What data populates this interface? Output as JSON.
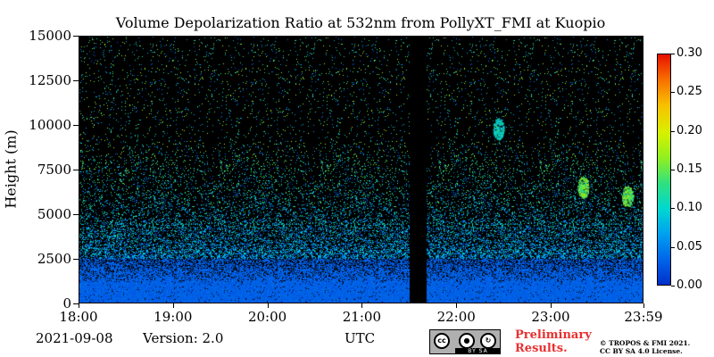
{
  "chart_data": {
    "type": "heatmap",
    "title": "Volume Depolarization Ratio at 532nm from PollyXT_FMI at Kuopio",
    "ylabel": "Height (m)",
    "xlabel": "UTC",
    "ylim": [
      0,
      15000
    ],
    "y_ticks": [
      "0",
      "2500",
      "5000",
      "7500",
      "10000",
      "12500",
      "15000"
    ],
    "y_tick_values": [
      0,
      2500,
      5000,
      7500,
      10000,
      12500,
      15000
    ],
    "x_ticks": [
      "18:00",
      "19:00",
      "20:00",
      "21:00",
      "22:00",
      "23:00",
      "23:59"
    ],
    "x_tick_hours": [
      18,
      19,
      20,
      21,
      22,
      23,
      23.983
    ],
    "xlim_hours": [
      18,
      23.983
    ],
    "colorbar": {
      "range": [
        0,
        0.3
      ],
      "ticks": [
        "0.00",
        "0.05",
        "0.10",
        "0.15",
        "0.20",
        "0.25",
        "0.30"
      ],
      "tick_values": [
        0,
        0.05,
        0.1,
        0.15,
        0.2,
        0.25,
        0.3
      ]
    },
    "no_data_gap_hours": [
      21.5,
      21.68
    ],
    "features": [
      {
        "kind": "boundary_layer",
        "height_top_m": 2500,
        "typical_depol": 0.03
      },
      {
        "kind": "cloud",
        "hour": 22.45,
        "height_m": 9800,
        "depol": 0.1
      },
      {
        "kind": "cloud",
        "hour": 23.35,
        "height_m": 6500,
        "depol": 0.15
      },
      {
        "kind": "cloud",
        "hour": 23.82,
        "height_m": 6000,
        "depol": 0.15
      }
    ]
  },
  "footer": {
    "date": "2021-09-08",
    "version": "Version: 2.0",
    "timezone_label": "UTC",
    "preliminary_line1": "Preliminary",
    "preliminary_line2": "Results.",
    "license_line1": "© TROPOS & FMI 2021.",
    "license_line2": "CC BY SA 4.0 License.",
    "cc_badge_text": "BY    SA"
  }
}
